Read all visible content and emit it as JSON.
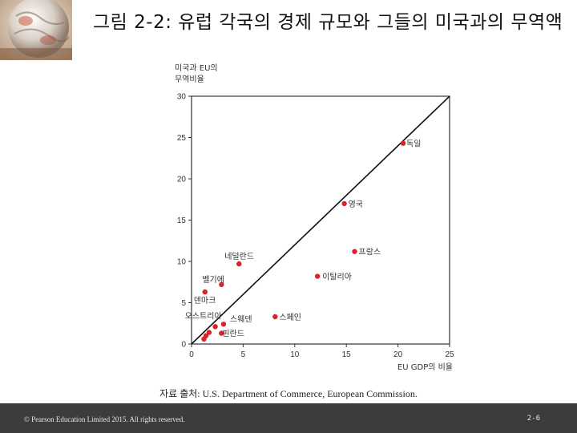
{
  "slide": {
    "title": "그림 2-2: 유럽 각국의 경제 규모와 그들의 미국과의 무역액",
    "source": "자료 출처: U.S. Department of Commerce, European Commission.",
    "copyright": "© Pearson Education Limited 2015. All rights reserved.",
    "page_number": "2-6"
  },
  "chart_data": {
    "type": "scatter",
    "xlabel": "EU GDP의 비율",
    "ylabel_line1": "미국과 EU의",
    "ylabel_line2": "무역비율",
    "xlim": [
      0,
      25
    ],
    "ylim": [
      0,
      30
    ],
    "xticks": [
      0,
      5,
      10,
      15,
      20,
      25
    ],
    "yticks": [
      0,
      5,
      10,
      15,
      20,
      25,
      30
    ],
    "grid": false,
    "reference_line": "45-degree line",
    "point_color": "#d8232a",
    "points": [
      {
        "label": "독일",
        "x": 20.5,
        "y": 24.3
      },
      {
        "label": "영국",
        "x": 14.8,
        "y": 17.0
      },
      {
        "label": "프랑스",
        "x": 15.8,
        "y": 11.2
      },
      {
        "label": "이탈리아",
        "x": 12.2,
        "y": 8.2
      },
      {
        "label": "네덜란드",
        "x": 4.6,
        "y": 9.7
      },
      {
        "label": "벨기에",
        "x": 2.9,
        "y": 7.2
      },
      {
        "label": "덴마크",
        "x": 1.3,
        "y": 6.3
      },
      {
        "label": "스페인",
        "x": 8.1,
        "y": 3.3
      },
      {
        "label": "오스트리아",
        "x": 2.3,
        "y": 2.1
      },
      {
        "label": "스웨덴",
        "x": 3.1,
        "y": 2.4
      },
      {
        "label": "핀란드",
        "x": 2.9,
        "y": 1.3
      },
      {
        "label": "",
        "x": 1.7,
        "y": 1.4
      },
      {
        "label": "",
        "x": 1.4,
        "y": 1.0
      },
      {
        "label": "",
        "x": 1.2,
        "y": 0.6
      }
    ]
  }
}
